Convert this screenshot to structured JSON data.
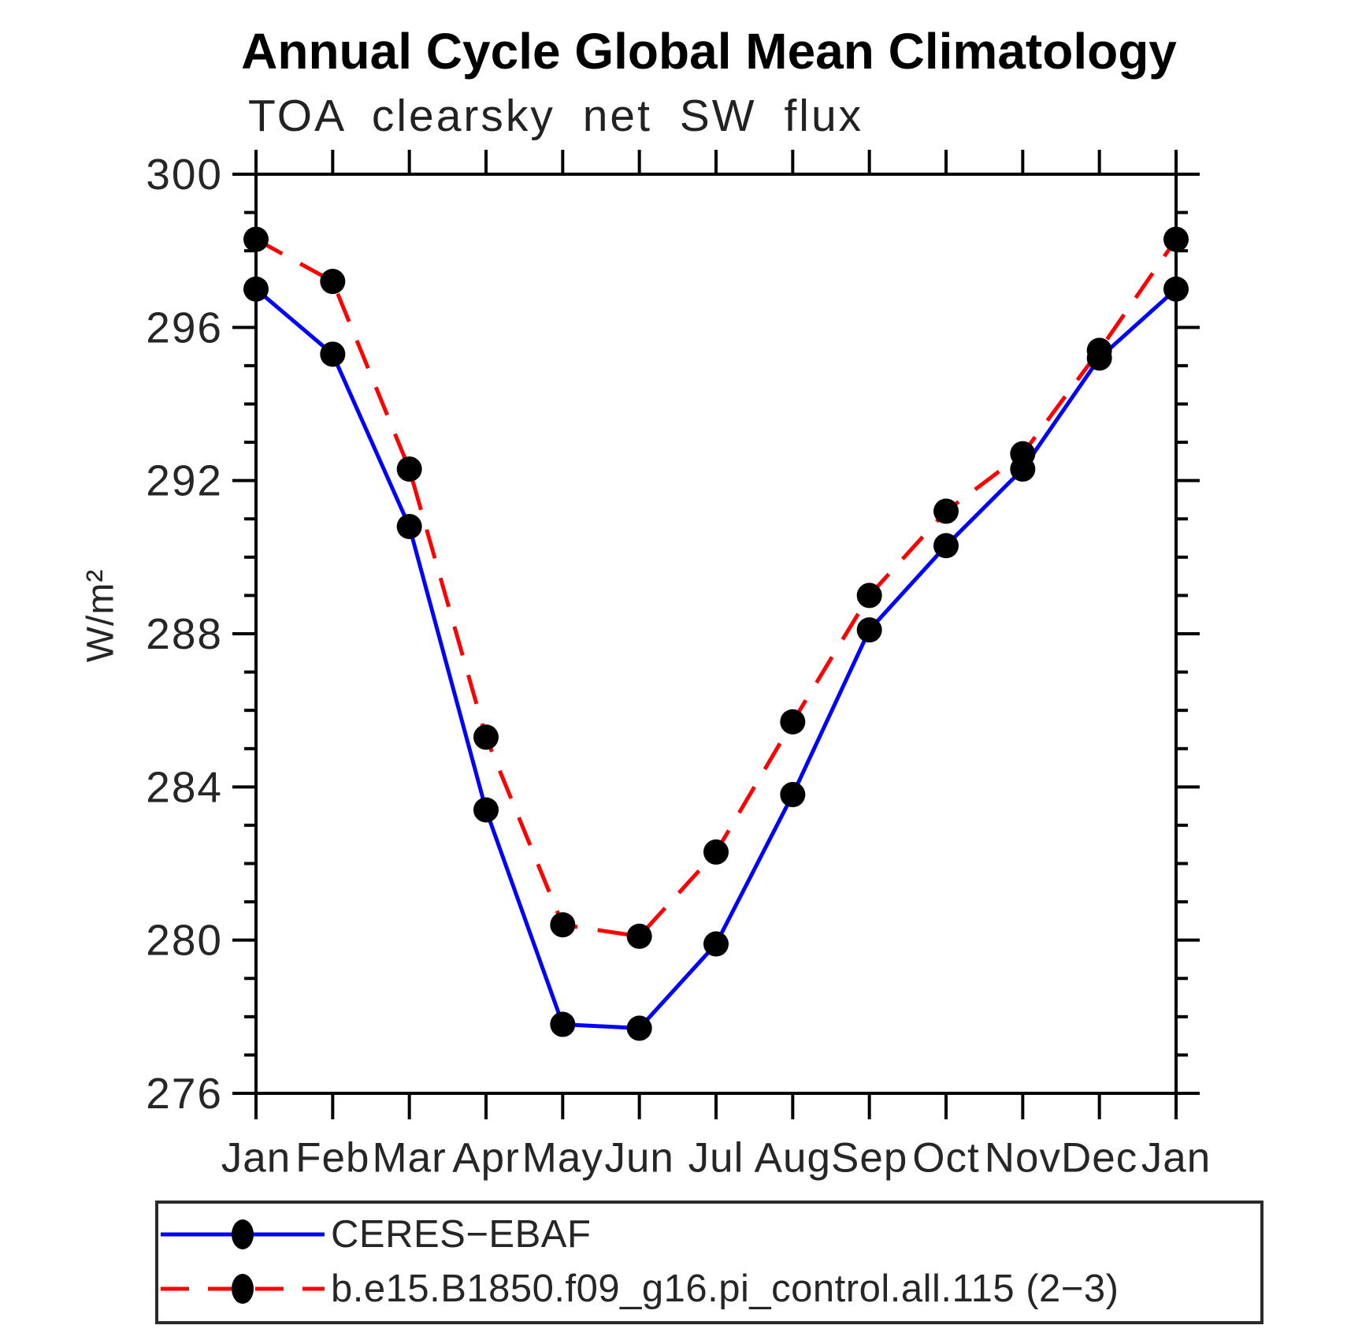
{
  "chart_data": {
    "type": "line",
    "title": "Annual Cycle Global Mean Climatology",
    "subtitle": "TOA clearsky net SW flux",
    "categories": [
      "Jan",
      "Feb",
      "Mar",
      "Apr",
      "May",
      "Jun",
      "Jul",
      "Aug",
      "Sep",
      "Oct",
      "Nov",
      "Dec",
      "Jan"
    ],
    "xlabel": "",
    "ylabel": "W/m²",
    "ylim": [
      276,
      300
    ],
    "ytick_major": [
      276,
      280,
      284,
      288,
      292,
      296,
      300
    ],
    "ytick_minor_step": 1,
    "grid": false,
    "legend_position": "bottom-left",
    "series": [
      {
        "name": "CERES−EBAF",
        "color": "#0000ff",
        "line_style": "solid",
        "marker": "circle",
        "marker_color": "#000000",
        "values": [
          297.0,
          295.3,
          290.8,
          283.4,
          277.8,
          277.7,
          279.9,
          283.8,
          288.1,
          290.3,
          292.3,
          295.2,
          297.0
        ]
      },
      {
        "name": "b.e15.B1850.f09_g16.pi_control.all.115 (2−3)",
        "color": "#ff0000",
        "line_style": "dashed",
        "marker": "circle",
        "marker_color": "#000000",
        "values": [
          298.3,
          297.2,
          292.3,
          285.3,
          280.4,
          280.1,
          282.3,
          285.7,
          289.0,
          291.2,
          292.7,
          295.4,
          298.3
        ]
      }
    ]
  }
}
